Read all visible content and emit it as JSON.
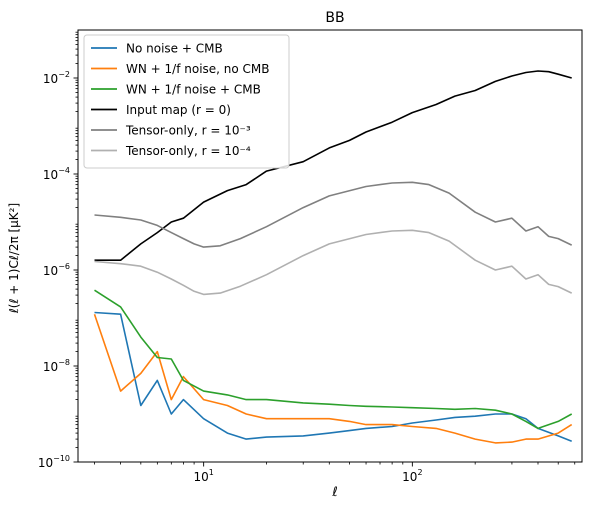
{
  "chart_data": {
    "type": "line",
    "title": "BB",
    "xlabel": "ℓ",
    "ylabel": "ℓ(ℓ + 1)Cℓ/2π [μK²]",
    "xscale": "log",
    "yscale": "log",
    "xlim": [
      2.5,
      650
    ],
    "ylim": [
      1e-10,
      0.1
    ],
    "xticks": [
      {
        "value": 10,
        "base": "10",
        "exp": "1"
      },
      {
        "value": 100,
        "base": "10",
        "exp": "2"
      }
    ],
    "yticks": [
      {
        "value": 1e-10,
        "base": "10",
        "exp": "−10"
      },
      {
        "value": 1e-08,
        "base": "10",
        "exp": "−8"
      },
      {
        "value": 1e-06,
        "base": "10",
        "exp": "−6"
      },
      {
        "value": 0.0001,
        "base": "10",
        "exp": "−4"
      },
      {
        "value": 0.01,
        "base": "10",
        "exp": "−2"
      }
    ],
    "legend_position": "upper-left",
    "grid": false,
    "series": [
      {
        "name": "No noise + CMB",
        "color": "#1f77b4",
        "x": [
          3,
          4,
          5,
          6,
          7,
          8,
          10,
          13,
          16,
          20,
          30,
          40,
          50,
          60,
          80,
          100,
          130,
          160,
          200,
          250,
          300,
          350,
          400,
          500,
          580
        ],
        "y": [
          1.3e-07,
          1.2e-07,
          1.5e-09,
          5e-09,
          1e-09,
          2e-09,
          8e-10,
          4e-10,
          3e-10,
          3.3e-10,
          3.5e-10,
          4e-10,
          4.5e-10,
          5e-10,
          5.5e-10,
          6.5e-10,
          7.5e-10,
          8.5e-10,
          9e-10,
          1e-09,
          1e-09,
          8e-10,
          5e-10,
          3.5e-10,
          2.7e-10
        ]
      },
      {
        "name": "WN + 1/f noise, no CMB",
        "color": "#ff7f0e",
        "x": [
          3,
          4,
          5,
          6,
          7,
          8,
          10,
          13,
          16,
          20,
          30,
          40,
          50,
          60,
          80,
          100,
          130,
          160,
          200,
          250,
          300,
          350,
          400,
          500,
          580
        ],
        "y": [
          1.2e-07,
          3e-09,
          7e-09,
          2e-08,
          2e-09,
          6e-09,
          2e-09,
          1.5e-09,
          1e-09,
          8e-10,
          8e-10,
          8e-10,
          7e-10,
          6e-10,
          6e-10,
          5.5e-10,
          5e-10,
          4e-10,
          3e-10,
          2.5e-10,
          2.6e-10,
          3e-10,
          3e-10,
          4e-10,
          6e-10
        ]
      },
      {
        "name": "WN + 1/f noise + CMB",
        "color": "#2ca02c",
        "x": [
          3,
          4,
          5,
          6,
          7,
          8,
          10,
          13,
          16,
          20,
          30,
          40,
          50,
          60,
          80,
          100,
          130,
          160,
          200,
          250,
          300,
          350,
          400,
          500,
          580
        ],
        "y": [
          3.8e-07,
          1.7e-07,
          4e-08,
          1.5e-08,
          1.4e-08,
          5e-09,
          3e-09,
          2.5e-09,
          2e-09,
          2e-09,
          1.7e-09,
          1.6e-09,
          1.5e-09,
          1.45e-09,
          1.4e-09,
          1.35e-09,
          1.3e-09,
          1.25e-09,
          1.3e-09,
          1.2e-09,
          1e-09,
          7e-10,
          5e-10,
          7e-10,
          1e-09
        ]
      },
      {
        "name": "Input map (r = 0)",
        "color": "#000000",
        "x": [
          3,
          4,
          5,
          6,
          7,
          8,
          10,
          13,
          16,
          20,
          30,
          40,
          50,
          60,
          80,
          100,
          130,
          160,
          200,
          250,
          300,
          350,
          400,
          450,
          500,
          580
        ],
        "y": [
          1.6e-06,
          1.6e-06,
          3.5e-06,
          6e-06,
          1e-05,
          1.2e-05,
          2.6e-05,
          4.5e-05,
          6e-05,
          0.000115,
          0.00018,
          0.00035,
          0.0005,
          0.00075,
          0.0012,
          0.0019,
          0.0028,
          0.0042,
          0.0055,
          0.0085,
          0.011,
          0.013,
          0.014,
          0.0135,
          0.012,
          0.01
        ]
      },
      {
        "name": "Tensor-only, r = 10⁻³",
        "color": "#808080",
        "x": [
          3,
          4,
          5,
          6,
          7,
          8,
          9,
          10,
          12,
          15,
          20,
          30,
          40,
          60,
          80,
          100,
          120,
          150,
          200,
          250,
          300,
          350,
          400,
          450,
          500,
          580
        ],
        "y": [
          1.4e-05,
          1.25e-05,
          1.1e-05,
          8.5e-06,
          6e-06,
          4.5e-06,
          3.5e-06,
          3e-06,
          3.2e-06,
          4.5e-06,
          8e-06,
          2e-05,
          3.5e-05,
          5.5e-05,
          6.5e-05,
          6.7e-05,
          6e-05,
          4e-05,
          1.6e-05,
          1e-05,
          1.2e-05,
          6.5e-06,
          8e-06,
          5e-06,
          4.5e-06,
          3.3e-06
        ]
      },
      {
        "name": "Tensor-only, r = 10⁻⁴",
        "color": "#b0b0b0",
        "x": [
          3,
          4,
          5,
          6,
          7,
          8,
          9,
          10,
          12,
          15,
          20,
          30,
          40,
          60,
          80,
          100,
          120,
          150,
          200,
          250,
          300,
          350,
          400,
          450,
          500,
          580
        ],
        "y": [
          1.5e-06,
          1.35e-06,
          1.2e-06,
          9e-07,
          6.5e-07,
          4.8e-07,
          3.6e-07,
          3.1e-07,
          3.3e-07,
          4.6e-07,
          8e-07,
          2e-06,
          3.5e-06,
          5.5e-06,
          6.5e-06,
          6.7e-06,
          6e-06,
          4e-06,
          1.6e-06,
          1e-06,
          1.2e-06,
          6.5e-07,
          8e-07,
          5e-07,
          4.5e-07,
          3.3e-07
        ]
      }
    ],
    "legend": [
      {
        "text": "No noise + CMB",
        "color": "#1f77b4"
      },
      {
        "text": "WN + 1/f noise, no CMB",
        "color": "#ff7f0e"
      },
      {
        "text": "WN + 1/f noise + CMB",
        "color": "#2ca02c"
      },
      {
        "text": "Input map (r = 0)",
        "color": "#000000"
      },
      {
        "text": "Tensor-only, r = 10⁻³",
        "color": "#808080"
      },
      {
        "text": "Tensor-only, r = 10⁻⁴",
        "color": "#b0b0b0"
      }
    ]
  }
}
